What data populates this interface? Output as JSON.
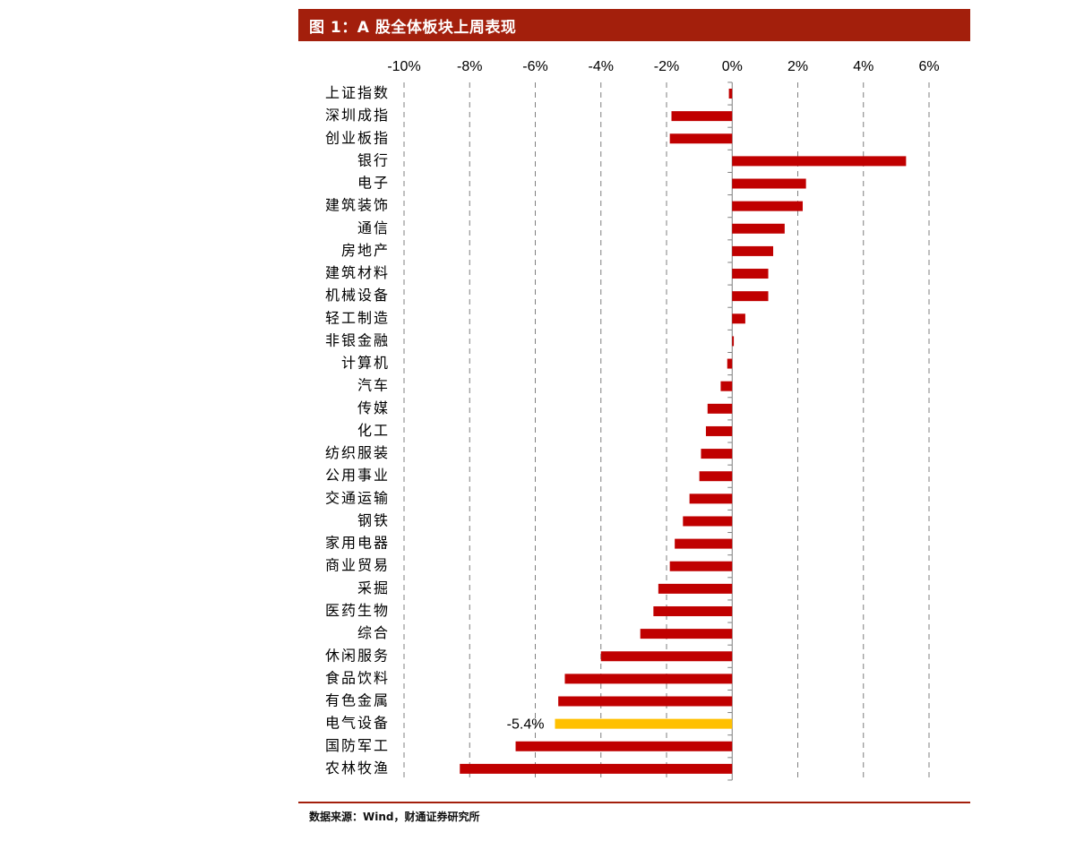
{
  "title": "图 1：A 股全体板块上周表现",
  "source": "数据来源：Wind，财通证券研究所",
  "chart_data": {
    "type": "bar",
    "orientation": "horizontal",
    "x_tick_labels": [
      "-10%",
      "-8%",
      "-6%",
      "-4%",
      "-2%",
      "0%",
      "2%",
      "4%",
      "6%"
    ],
    "x_ticks": [
      -10,
      -8,
      -6,
      -4,
      -2,
      0,
      2,
      4,
      6
    ],
    "xlim": [
      -10,
      6
    ],
    "x_axis_position": "top",
    "grid": "vertical dashed",
    "categories": [
      "上证指数",
      "深圳成指",
      "创业板指",
      "银行",
      "电子",
      "建筑装饰",
      "通信",
      "房地产",
      "建筑材料",
      "机械设备",
      "轻工制造",
      "非银金融",
      "计算机",
      "汽车",
      "传媒",
      "化工",
      "纺织服装",
      "公用事业",
      "交通运输",
      "钢铁",
      "家用电器",
      "商业贸易",
      "采掘",
      "医药生物",
      "综合",
      "休闲服务",
      "食品饮料",
      "有色金属",
      "电气设备",
      "国防军工",
      "农林牧渔"
    ],
    "values": [
      -0.1,
      -1.85,
      -1.9,
      5.3,
      2.25,
      2.15,
      1.6,
      1.25,
      1.1,
      1.1,
      0.4,
      0.05,
      -0.15,
      -0.35,
      -0.75,
      -0.8,
      -0.95,
      -1.0,
      -1.3,
      -1.5,
      -1.75,
      -1.9,
      -2.25,
      -2.4,
      -2.8,
      -4.0,
      -5.1,
      -5.3,
      -5.4,
      -6.6,
      -8.3
    ],
    "highlight": {
      "category": "电气设备",
      "label": "-5.4%"
    },
    "colors": {
      "bar": "#c00000",
      "highlight": "#ffc000",
      "grid": "#7f7f7f",
      "axis": "#7f7f7f",
      "title_bg": "#a31f0c",
      "title_text": "#ffffff"
    }
  }
}
